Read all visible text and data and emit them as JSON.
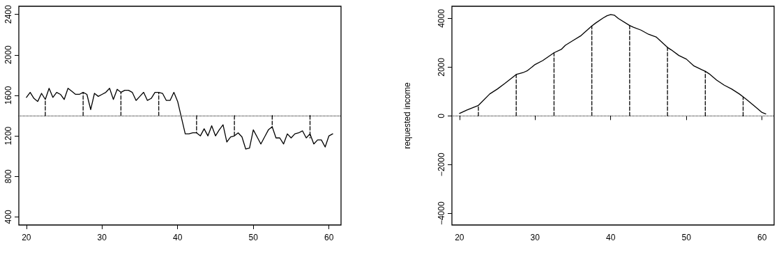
{
  "chart_data": [
    {
      "type": "line",
      "xlim": [
        19,
        61.6
      ],
      "ylim": [
        320,
        2480
      ],
      "xticks": [
        20,
        30,
        40,
        50,
        60
      ],
      "yticks": [
        400,
        800,
        1200,
        1600,
        2000,
        2400
      ],
      "ref_lines": [
        {
          "axis": "y",
          "value": 1400,
          "line_style": "dotted",
          "color": "#000000"
        }
      ],
      "series": [
        {
          "color": "#000000",
          "x": [
            20,
            20.5,
            21,
            21.5,
            22,
            22.5,
            23,
            23.5,
            24,
            24.5,
            25,
            25.5,
            26,
            26.5,
            27,
            27.5,
            28,
            28.5,
            29,
            29.5,
            30,
            30.5,
            31,
            31.5,
            32,
            32.5,
            33,
            33.5,
            34,
            34.5,
            35,
            35.5,
            36,
            36.5,
            37,
            37.5,
            38,
            38.5,
            39,
            39.5,
            40,
            40.5,
            41,
            41.5,
            42,
            42.5,
            43,
            43.5,
            44,
            44.5,
            45,
            45.5,
            46,
            46.5,
            47,
            47.5,
            48,
            48.5,
            49,
            49.5,
            50,
            50.5,
            51,
            51.5,
            52,
            52.5,
            53,
            53.5,
            54,
            54.5,
            55,
            55.5,
            56,
            56.5,
            57,
            57.5,
            58,
            58.5,
            59,
            59.5,
            60,
            60.5
          ],
          "values": [
            1580,
            1630,
            1570,
            1540,
            1620,
            1560,
            1670,
            1580,
            1630,
            1610,
            1560,
            1670,
            1640,
            1610,
            1610,
            1630,
            1610,
            1460,
            1620,
            1590,
            1610,
            1630,
            1670,
            1560,
            1660,
            1630,
            1650,
            1650,
            1630,
            1550,
            1590,
            1630,
            1550,
            1570,
            1630,
            1630,
            1620,
            1550,
            1550,
            1630,
            1540,
            1380,
            1220,
            1220,
            1230,
            1230,
            1200,
            1270,
            1200,
            1300,
            1200,
            1260,
            1310,
            1140,
            1190,
            1200,
            1230,
            1190,
            1070,
            1080,
            1260,
            1190,
            1120,
            1190,
            1260,
            1290,
            1180,
            1180,
            1120,
            1220,
            1180,
            1220,
            1230,
            1250,
            1180,
            1220,
            1120,
            1160,
            1160,
            1090,
            1200,
            1220
          ]
        },
        {
          "color": "#000000",
          "line_style": "dashed",
          "x": [
            22.5,
            22.5
          ],
          "values": [
            1400,
            1560
          ]
        },
        {
          "color": "#000000",
          "line_style": "dashed",
          "x": [
            27.5,
            27.5
          ],
          "values": [
            1400,
            1630
          ]
        },
        {
          "color": "#000000",
          "line_style": "dashed",
          "x": [
            32.5,
            32.5
          ],
          "values": [
            1400,
            1630
          ]
        },
        {
          "color": "#000000",
          "line_style": "dashed",
          "x": [
            37.5,
            37.5
          ],
          "values": [
            1400,
            1630
          ]
        },
        {
          "color": "#000000",
          "line_style": "dashed",
          "x": [
            42.5,
            42.5
          ],
          "values": [
            1400,
            1230
          ]
        },
        {
          "color": "#000000",
          "line_style": "dashed",
          "x": [
            47.5,
            47.5
          ],
          "values": [
            1400,
            1200
          ]
        },
        {
          "color": "#000000",
          "line_style": "dashed",
          "x": [
            52.5,
            52.5
          ],
          "values": [
            1400,
            1290
          ]
        },
        {
          "color": "#000000",
          "line_style": "dashed",
          "x": [
            57.5,
            57.5
          ],
          "values": [
            1400,
            1180
          ]
        }
      ]
    },
    {
      "type": "line",
      "ylabel": "requested income",
      "xlim": [
        19,
        61.6
      ],
      "ylim": [
        -4480,
        4500
      ],
      "xticks": [
        20,
        30,
        40,
        50,
        60
      ],
      "yticks": [
        -4000,
        -2000,
        0,
        2000,
        4000
      ],
      "ref_lines": [
        {
          "axis": "y",
          "value": 0,
          "line_style": "dotted",
          "color": "#000000"
        }
      ],
      "series": [
        {
          "color": "#000000",
          "x": [
            20,
            21,
            22.5,
            24,
            25,
            26,
            27.5,
            28.5,
            29,
            30,
            31,
            32.5,
            33.5,
            34,
            35,
            36,
            37.5,
            38,
            39,
            39.5,
            40,
            40.5,
            41,
            42.5,
            43,
            44,
            45,
            46,
            47.5,
            48,
            49,
            50,
            51,
            52,
            52.5,
            53,
            54,
            55,
            56,
            57,
            57.5,
            58,
            59,
            60,
            60.5
          ],
          "values": [
            100,
            240,
            430,
            900,
            1100,
            1330,
            1700,
            1790,
            1860,
            2110,
            2270,
            2590,
            2740,
            2900,
            3090,
            3280,
            3690,
            3810,
            4020,
            4110,
            4160,
            4130,
            4000,
            3710,
            3640,
            3520,
            3350,
            3240,
            2810,
            2710,
            2480,
            2330,
            2050,
            1900,
            1830,
            1730,
            1470,
            1260,
            1100,
            900,
            780,
            660,
            400,
            140,
            80
          ]
        },
        {
          "color": "#000000",
          "line_style": "dashed",
          "x": [
            22.5,
            22.5
          ],
          "values": [
            0,
            430
          ]
        },
        {
          "color": "#000000",
          "line_style": "dashed",
          "x": [
            27.5,
            27.5
          ],
          "values": [
            0,
            1700
          ]
        },
        {
          "color": "#000000",
          "line_style": "dashed",
          "x": [
            32.5,
            32.5
          ],
          "values": [
            0,
            2590
          ]
        },
        {
          "color": "#000000",
          "line_style": "dashed",
          "x": [
            37.5,
            37.5
          ],
          "values": [
            0,
            3690
          ]
        },
        {
          "color": "#000000",
          "line_style": "dashed",
          "x": [
            42.5,
            42.5
          ],
          "values": [
            0,
            3710
          ]
        },
        {
          "color": "#000000",
          "line_style": "dashed",
          "x": [
            47.5,
            47.5
          ],
          "values": [
            0,
            2810
          ]
        },
        {
          "color": "#000000",
          "line_style": "dashed",
          "x": [
            52.5,
            52.5
          ],
          "values": [
            0,
            1830
          ]
        },
        {
          "color": "#000000",
          "line_style": "dashed",
          "x": [
            57.5,
            57.5
          ],
          "values": [
            0,
            780
          ]
        }
      ]
    }
  ]
}
